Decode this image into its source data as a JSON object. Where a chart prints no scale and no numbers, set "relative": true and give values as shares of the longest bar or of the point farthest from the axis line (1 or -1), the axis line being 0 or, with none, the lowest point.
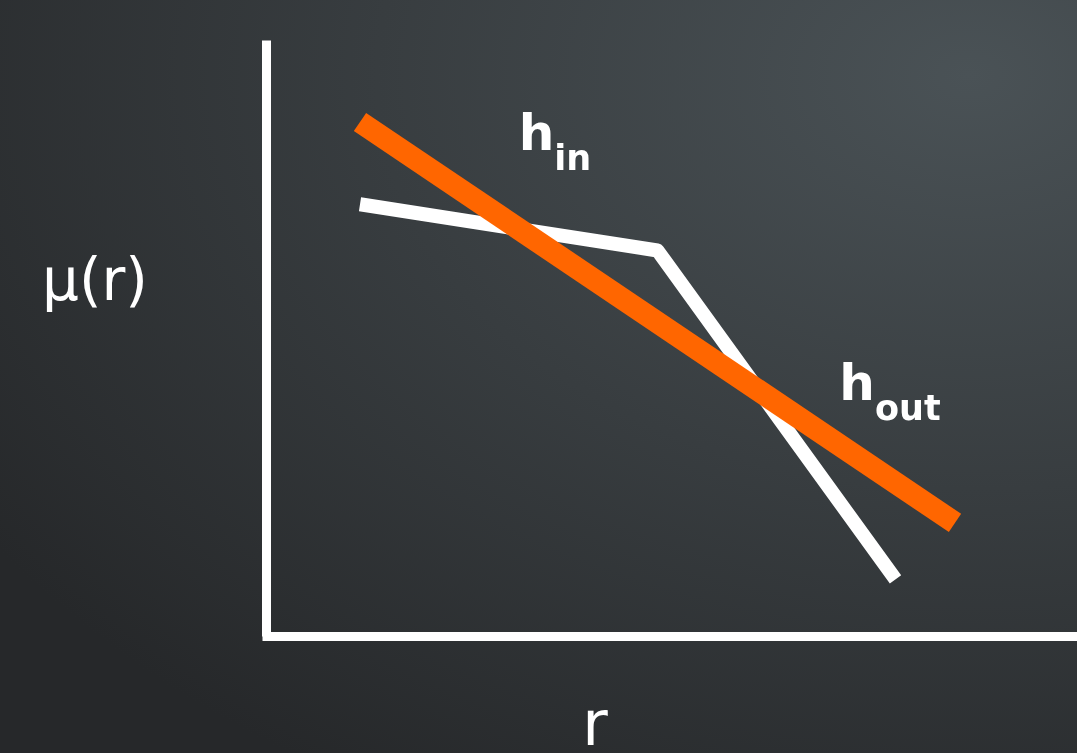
{
  "chart_data": {
    "type": "line",
    "relative": true,
    "xlabel": "r",
    "ylabel": "μ(r)",
    "categories": [
      null,
      null,
      null,
      null,
      null,
      null,
      null,
      null,
      null,
      null,
      null
    ],
    "series": [
      {
        "color": "#ffffff",
        "values": [
          0.84,
          null,
          null,
          null,
          null,
          0.75,
          null,
          null,
          null,
          0.11,
          null
        ]
      },
      {
        "color": "#ff6600",
        "values": [
          1,
          null,
          null,
          null,
          null,
          null,
          null,
          null,
          null,
          null,
          0.22
        ]
      }
    ],
    "annotations": [
      "h$_{in}$",
      "h$_{out}$"
    ]
  }
}
